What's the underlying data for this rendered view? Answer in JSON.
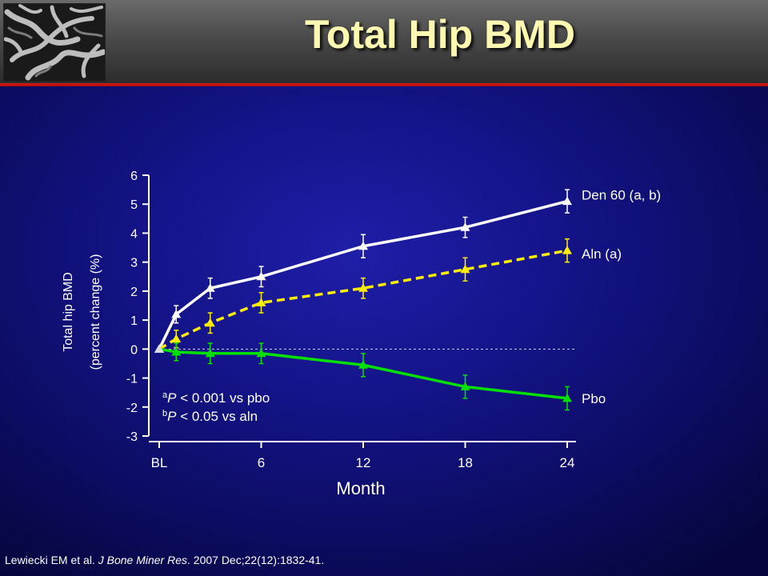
{
  "slide": {
    "title": "Total Hip BMD",
    "citation": {
      "authors": "Lewiecki EM et al. ",
      "journal": "J Bone Miner Res",
      "details": ". 2007 Dec;22(12):1832-41."
    },
    "footnotes": [
      {
        "sup": "a",
        "p": "P",
        "text": " < 0.001 vs pbo"
      },
      {
        "sup": "b",
        "p": "P",
        "text": " < 0.05 vs aln"
      }
    ],
    "colors": {
      "title": "#fff8b0",
      "header_accent": "#d81515",
      "background": "#16158c"
    }
  },
  "chart_data": {
    "type": "line",
    "xlabel": "Month",
    "ylabel_line1": "Total hip BMD",
    "ylabel_line2": "(percent change (%)",
    "ylim": [
      -3,
      6
    ],
    "yticks": [
      6,
      5,
      4,
      3,
      2,
      1,
      0,
      -1,
      -2,
      -3
    ],
    "xlim": [
      0,
      24
    ],
    "xticks": [
      {
        "value": 0,
        "label": "BL"
      },
      {
        "value": 6,
        "label": "6"
      },
      {
        "value": 12,
        "label": "12"
      },
      {
        "value": 18,
        "label": "18"
      },
      {
        "value": 24,
        "label": "24"
      }
    ],
    "reference_line": 0,
    "series": [
      {
        "name": "Den 60 (a, b)",
        "color": "#ffffff",
        "dashed": false,
        "marker": "triangle",
        "x": [
          0,
          1,
          3,
          6,
          12,
          18,
          24
        ],
        "y": [
          0,
          1.2,
          2.1,
          2.5,
          3.55,
          4.2,
          5.1
        ],
        "err": [
          0,
          0.3,
          0.35,
          0.35,
          0.4,
          0.35,
          0.4
        ]
      },
      {
        "name": "Aln (a)",
        "color": "#ffee00",
        "dashed": true,
        "marker": "triangle",
        "x": [
          0,
          1,
          3,
          6,
          12,
          18,
          24
        ],
        "y": [
          0,
          0.35,
          0.9,
          1.6,
          2.1,
          2.75,
          3.4
        ],
        "err": [
          0,
          0.3,
          0.35,
          0.35,
          0.35,
          0.4,
          0.4
        ]
      },
      {
        "name": "Pbo",
        "color": "#00e000",
        "dashed": false,
        "marker": "triangle",
        "x": [
          0,
          1,
          3,
          6,
          12,
          18,
          24
        ],
        "y": [
          0,
          -0.1,
          -0.15,
          -0.15,
          -0.55,
          -1.3,
          -1.7
        ],
        "err": [
          0,
          0.3,
          0.35,
          0.35,
          0.4,
          0.4,
          0.4
        ]
      }
    ]
  }
}
